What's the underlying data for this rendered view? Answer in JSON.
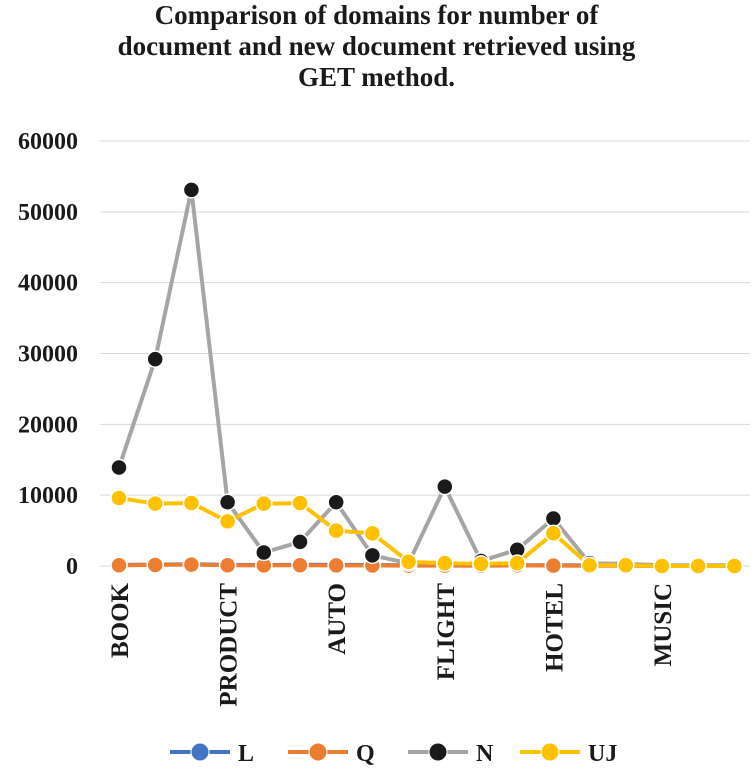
{
  "chart_data": {
    "type": "line",
    "title_lines": [
      "Comparison of domains for number of",
      "document and new document retrieved using",
      "GET method."
    ],
    "xlabel": "",
    "ylabel": "",
    "ylim": [
      0,
      60000
    ],
    "yticks": [
      0,
      10000,
      20000,
      30000,
      40000,
      50000,
      60000
    ],
    "ytick_labels": [
      "0",
      "10000",
      "20000",
      "30000",
      "40000",
      "50000",
      "60000"
    ],
    "grid": true,
    "legend_position": "bottom",
    "point_count": 18,
    "category_labels": [
      {
        "index": 0,
        "label": "BOOK"
      },
      {
        "index": 3,
        "label": "PRODUCT"
      },
      {
        "index": 6,
        "label": "AUTO"
      },
      {
        "index": 9,
        "label": "FLIGHT"
      },
      {
        "index": 12,
        "label": "HOTEL"
      },
      {
        "index": 15,
        "label": "MUSIC"
      }
    ],
    "series": [
      {
        "name": "L",
        "color": "#4472c4",
        "line_color": "#4472c4",
        "marker_color": "#4472c4",
        "values": [
          150,
          200,
          250,
          150,
          120,
          180,
          160,
          140,
          100,
          120,
          100,
          110,
          100,
          90,
          80,
          60,
          60,
          50
        ]
      },
      {
        "name": "Q",
        "color": "#ed7d31",
        "line_color": "#ed7d31",
        "marker_color": "#ed7d31",
        "values": [
          100,
          150,
          200,
          100,
          80,
          100,
          90,
          70,
          50,
          60,
          40,
          80,
          60,
          40,
          30,
          20,
          20,
          10
        ]
      },
      {
        "name": "N",
        "color": "#a5a5a5",
        "line_color": "#a5a5a5",
        "marker_color": "#1a1a1a",
        "values": [
          13900,
          29200,
          53100,
          9000,
          1900,
          3400,
          9000,
          1500,
          400,
          11200,
          700,
          2300,
          6700,
          400,
          300,
          100,
          100,
          100
        ]
      },
      {
        "name": "UJ",
        "color": "#ffc000",
        "line_color": "#ffc000",
        "marker_color": "#ffc000",
        "values": [
          9600,
          8800,
          8900,
          6300,
          8800,
          8900,
          5000,
          4600,
          600,
          400,
          300,
          400,
          4600,
          100,
          100,
          0,
          0,
          0
        ]
      }
    ]
  }
}
